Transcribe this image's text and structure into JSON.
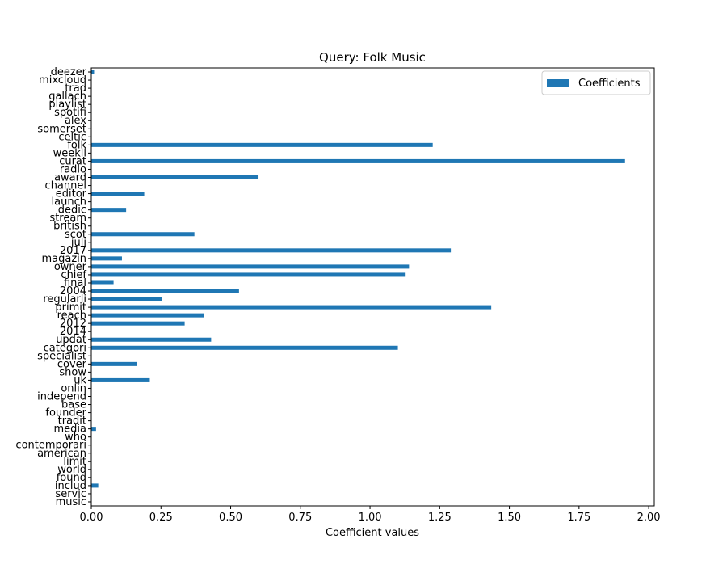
{
  "chart_data": {
    "type": "bar",
    "orientation": "horizontal",
    "title": "Query: Folk Music",
    "xlabel": "Coefficient values",
    "ylabel": "",
    "xlim": [
      0.0,
      2.02
    ],
    "xticks": [
      "0.00",
      "0.25",
      "0.50",
      "0.75",
      "1.00",
      "1.25",
      "1.50",
      "1.75",
      "2.00"
    ],
    "grid": false,
    "legend_position": "top-right",
    "series": [
      {
        "name": "Coefficients",
        "color": "#1f77b4",
        "categories": [
          "music",
          "servic",
          "includ",
          "found",
          "world",
          "limit",
          "american",
          "contemporari",
          "who",
          "media",
          "tradit",
          "founder",
          "base",
          "independ",
          "onlin",
          "uk",
          "show",
          "cover",
          "specialist",
          "categori",
          "updat",
          "2014",
          "2012",
          "reach",
          "primit",
          "regularli",
          "2004",
          "final",
          "chief",
          "owner",
          "magazin",
          "2017",
          "juli",
          "scot",
          "british",
          "stream",
          "dedic",
          "launch",
          "editor",
          "channel",
          "award",
          "radio",
          "curat",
          "weekli",
          "folk",
          "celtic",
          "somerset",
          "alex",
          "spotifi",
          "playlist",
          "gallach",
          "trad",
          "mixcloud",
          "deezer"
        ],
        "values": [
          0,
          0,
          0.025,
          0,
          0,
          0,
          0,
          0,
          0,
          0.017,
          0,
          0,
          0,
          0,
          0,
          0.21,
          0,
          0.165,
          0,
          1.1,
          0.43,
          0,
          0.335,
          0.405,
          1.435,
          0.255,
          0.53,
          0.08,
          1.125,
          1.14,
          0.11,
          1.29,
          0,
          0.37,
          0,
          0,
          0.125,
          0,
          0.19,
          0,
          0.6,
          0,
          1.915,
          0,
          1.225,
          0,
          0,
          0,
          0,
          0,
          0,
          0,
          0,
          0.01
        ]
      }
    ]
  }
}
